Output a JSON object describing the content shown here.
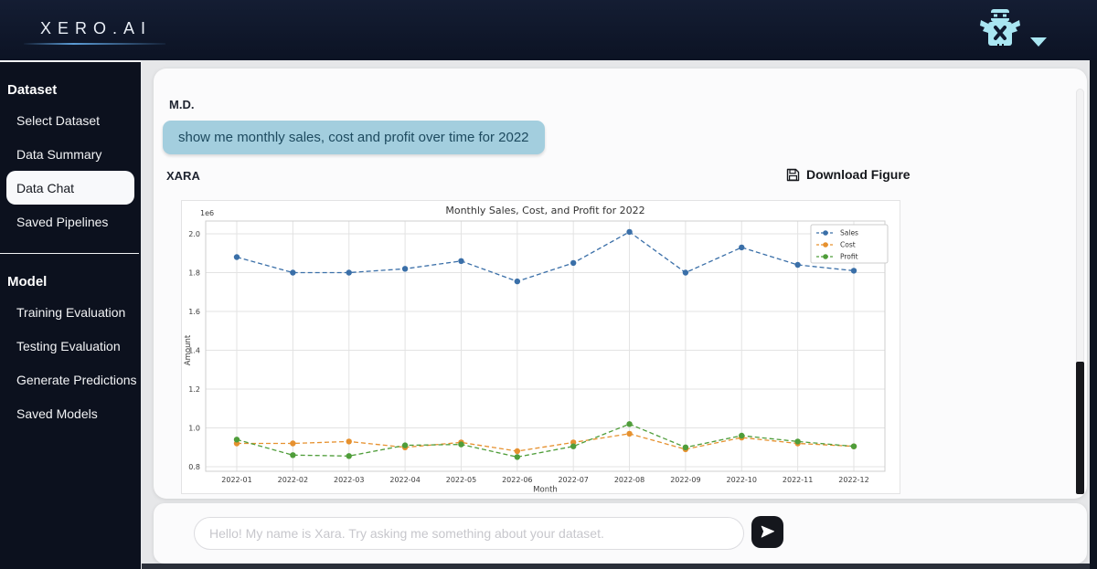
{
  "topbar": {
    "logo": "XERO.AI"
  },
  "account": {
    "robot_icon": "robot-mascot",
    "caret_icon": "chevron-down"
  },
  "sidebar": {
    "sections": [
      {
        "title": "Dataset",
        "items": [
          {
            "label": "Select Dataset",
            "active": false
          },
          {
            "label": "Data Summary",
            "active": false
          },
          {
            "label": "Data Chat",
            "active": true
          },
          {
            "label": "Saved Pipelines",
            "active": false
          }
        ]
      },
      {
        "title": "Model",
        "items": [
          {
            "label": "Training Evaluation",
            "active": false
          },
          {
            "label": "Testing Evaluation",
            "active": false
          },
          {
            "label": "Generate Predictions",
            "active": false
          },
          {
            "label": "Saved Models",
            "active": false
          }
        ]
      }
    ]
  },
  "chat": {
    "user_label": "M.D.",
    "user_message": "show me monthly sales, cost and profit over time for 2022",
    "bot_label": "XARA",
    "download_label": "Download Figure"
  },
  "chart_data": {
    "type": "line",
    "title": "Monthly Sales, Cost, and Profit for 2022",
    "xlabel": "Month",
    "ylabel": "Amount",
    "offset_text": "1e6",
    "grid": true,
    "legend_position": "upper right",
    "line_style": "dashed-with-dot-markers",
    "categories": [
      "2022-01",
      "2022-02",
      "2022-03",
      "2022-04",
      "2022-05",
      "2022-06",
      "2022-07",
      "2022-08",
      "2022-09",
      "2022-10",
      "2022-11",
      "2022-12"
    ],
    "y_ticks": [
      800000,
      1000000,
      1200000,
      1400000,
      1600000,
      1800000,
      2000000
    ],
    "ylim": [
      790000,
      2070000
    ],
    "series": [
      {
        "name": "Sales",
        "color": "#3a6fa8",
        "values": [
          1880000,
          1800000,
          1800000,
          1820000,
          1860000,
          1755000,
          1850000,
          2010000,
          1800000,
          1930000,
          1840000,
          1810000
        ]
      },
      {
        "name": "Cost",
        "color": "#e6912f",
        "values": [
          920000,
          920000,
          930000,
          900000,
          925000,
          880000,
          925000,
          970000,
          890000,
          950000,
          920000,
          905000
        ]
      },
      {
        "name": "Profit",
        "color": "#4f9d3a",
        "values": [
          940000,
          860000,
          855000,
          910000,
          915000,
          850000,
          905000,
          1020000,
          900000,
          960000,
          930000,
          905000
        ]
      }
    ]
  },
  "composer": {
    "placeholder": "Hello! My name is Xara. Try asking me something about your dataset.",
    "send_icon": "paper-plane"
  },
  "colors": {
    "accent_underline": "#5b9bd5",
    "bubble": "#a3cede",
    "send_button": "#15171d",
    "robot": "#a9e6f2"
  }
}
